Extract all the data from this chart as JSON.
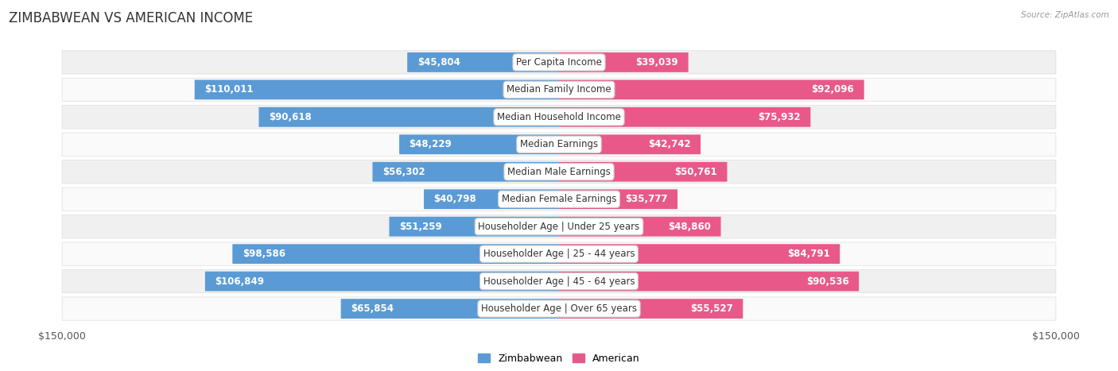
{
  "title": "ZIMBABWEAN VS AMERICAN INCOME",
  "source": "Source: ZipAtlas.com",
  "categories": [
    "Per Capita Income",
    "Median Family Income",
    "Median Household Income",
    "Median Earnings",
    "Median Male Earnings",
    "Median Female Earnings",
    "Householder Age | Under 25 years",
    "Householder Age | 25 - 44 years",
    "Householder Age | 45 - 64 years",
    "Householder Age | Over 65 years"
  ],
  "zimbabwean_values": [
    45804,
    110011,
    90618,
    48229,
    56302,
    40798,
    51259,
    98586,
    106849,
    65854
  ],
  "american_values": [
    39039,
    92096,
    75932,
    42742,
    50761,
    35777,
    48860,
    84791,
    90536,
    55527
  ],
  "zimbabwean_labels": [
    "$45,804",
    "$110,011",
    "$90,618",
    "$48,229",
    "$56,302",
    "$40,798",
    "$51,259",
    "$98,586",
    "$106,849",
    "$65,854"
  ],
  "american_labels": [
    "$39,039",
    "$92,096",
    "$75,932",
    "$42,742",
    "$50,761",
    "$35,777",
    "$48,860",
    "$84,791",
    "$90,536",
    "$55,527"
  ],
  "max_value": 150000,
  "zimbabwean_color_dark": "#5b9bd5",
  "zimbabwean_color_light": "#abc7e8",
  "american_color_dark": "#e8598a",
  "american_color_light": "#f0b0c8",
  "row_bg_even": "#f0f0f0",
  "row_bg_odd": "#fafafa",
  "background_color": "#ffffff",
  "title_fontsize": 12,
  "axis_fontsize": 9,
  "bar_label_fontsize": 8.5,
  "category_fontsize": 8.5,
  "legend_fontsize": 9,
  "label_threshold": 0.18
}
